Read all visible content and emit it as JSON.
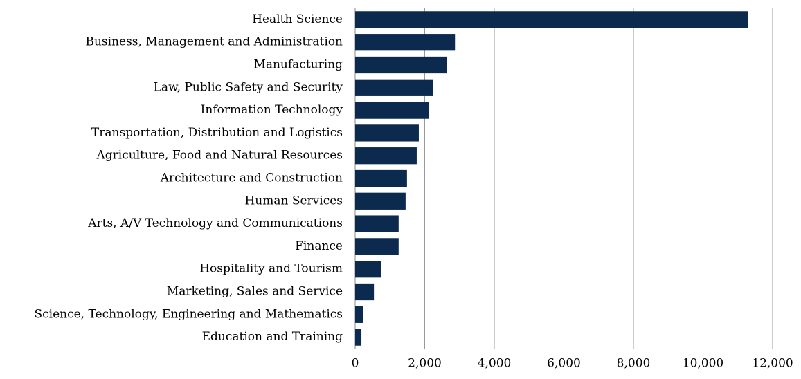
{
  "chart_data": {
    "type": "barh",
    "categories": [
      "Health Science",
      "Business, Management and Administration",
      "Manufacturing",
      "Law, Public Safety and Security",
      "Information Technology",
      "Transportation, Distribution and Logistics",
      "Agriculture, Food and Natural Resources",
      "Architecture and Construction",
      "Human Services",
      "Arts, A/V Technology and Communications",
      "Finance",
      "Hospitality and Tourism",
      "Marketing, Sales and Service",
      "Science, Technology, Engineering and Mathematics",
      "Education and Training"
    ],
    "values": [
      11300,
      2870,
      2630,
      2230,
      2130,
      1830,
      1770,
      1490,
      1450,
      1250,
      1250,
      740,
      540,
      220,
      180
    ],
    "color": "#0c2a4e",
    "xlim": [
      0,
      12000
    ],
    "xticks": [
      0,
      {
        "value": 2000,
        "label": "2,000"
      },
      {
        "value": 4000,
        "label": "4,000"
      },
      {
        "value": 6000,
        "label": "6,000"
      },
      {
        "value": 8000,
        "label": "8,000"
      },
      {
        "value": 10000,
        "label": "10,000"
      },
      {
        "value": 12000,
        "label": "12,000"
      }
    ],
    "grid": true
  }
}
